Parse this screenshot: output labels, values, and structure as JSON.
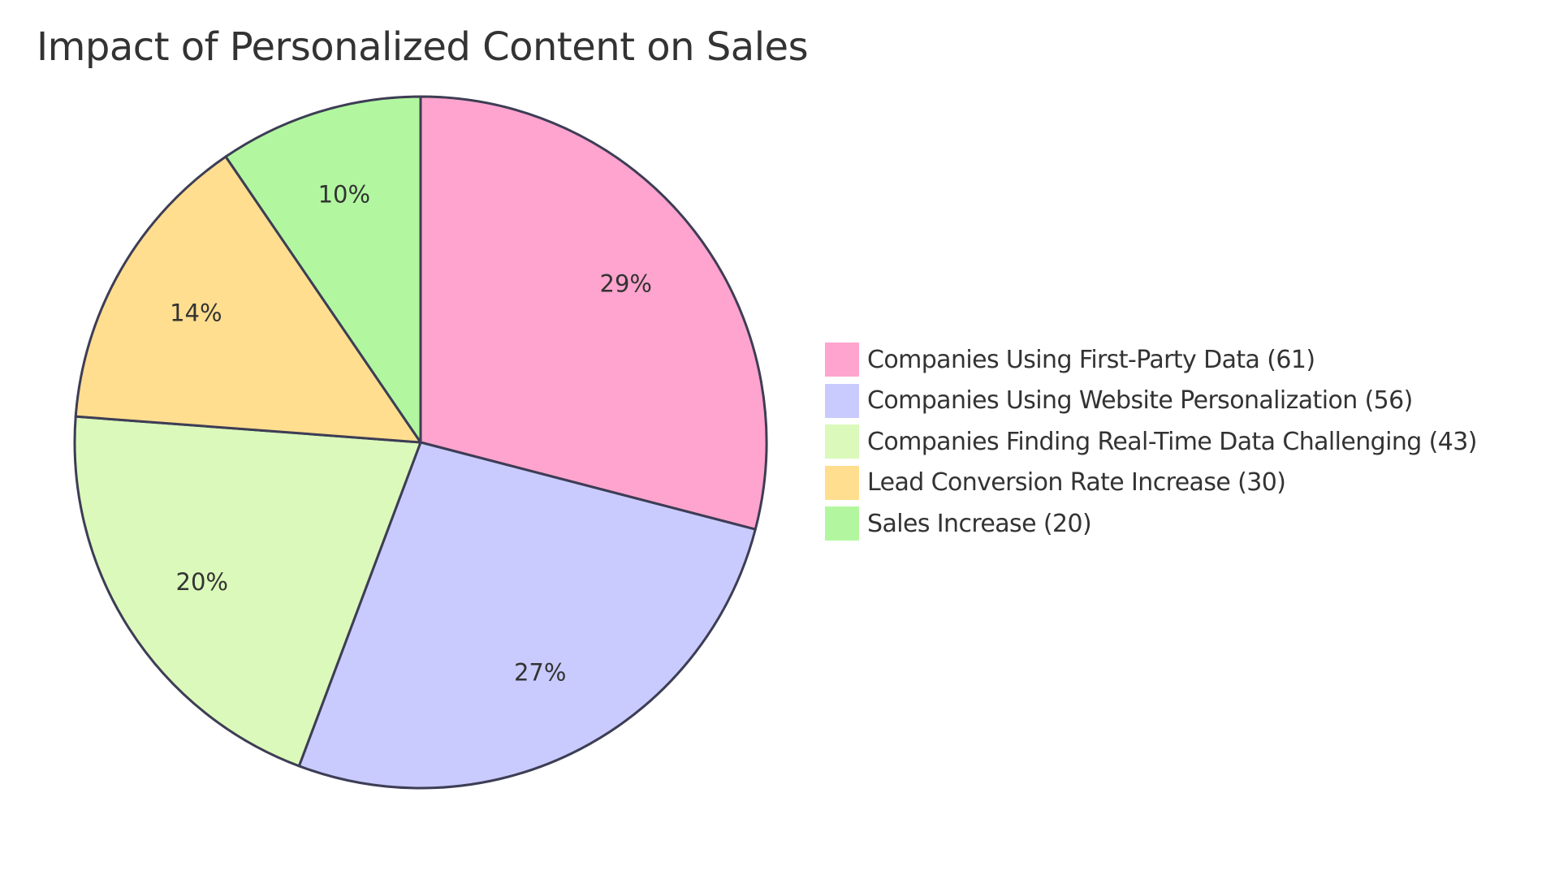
{
  "chart_data": {
    "type": "pie",
    "title": "Impact of Personalized Content on Sales",
    "slices": [
      {
        "label": "Companies Using First-Party Data (61)",
        "value": 61,
        "percent_label": "29%",
        "color": "#FFA4CE"
      },
      {
        "label": "Companies Using Website Personalization (56)",
        "value": 56,
        "percent_label": "27%",
        "color": "#C9CBFF"
      },
      {
        "label": "Companies Finding Real-Time Data Challenging (43)",
        "value": 43,
        "percent_label": "20%",
        "color": "#DBF9BA"
      },
      {
        "label": "Lead Conversion Rate Increase (30)",
        "value": 30,
        "percent_label": "14%",
        "color": "#FFDE8F"
      },
      {
        "label": "Sales Increase (20)",
        "value": 20,
        "percent_label": "10%",
        "color": "#B2F7A0"
      }
    ],
    "legend_position": "right",
    "stroke_color": "#3d3d55"
  }
}
